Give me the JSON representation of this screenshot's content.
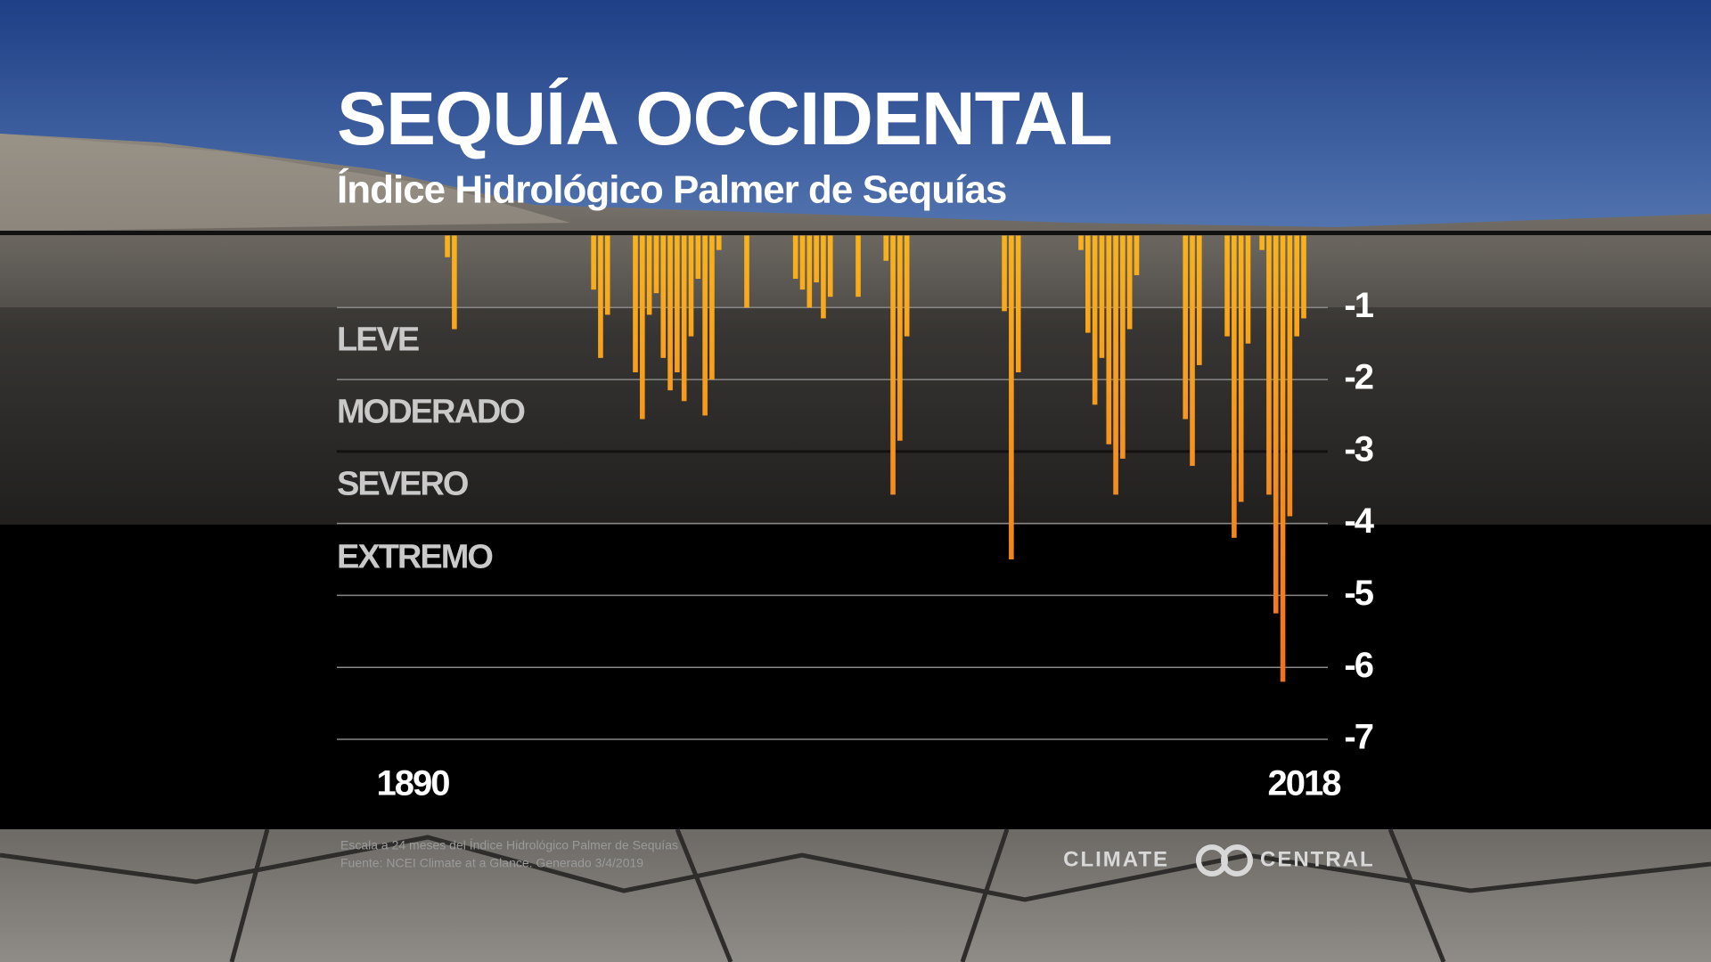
{
  "chart_data": {
    "type": "bar",
    "title": "SEQUÍA OCCIDENTAL",
    "subtitle": "Índice Hidrológico Palmer de Sequías",
    "band_labels": [
      "LEVE",
      "MODERADO",
      "SEVERO",
      "EXTREMO"
    ],
    "x": [
      1895,
      1896,
      1916,
      1917,
      1918,
      1922,
      1923,
      1924,
      1925,
      1926,
      1927,
      1928,
      1929,
      1930,
      1931,
      1932,
      1933,
      1934,
      1938,
      1945,
      1946,
      1947,
      1948,
      1949,
      1950,
      1954,
      1958,
      1959,
      1960,
      1961,
      1975,
      1976,
      1977,
      1986,
      1987,
      1988,
      1989,
      1990,
      1991,
      1992,
      1993,
      1994,
      2001,
      2002,
      2003,
      2007,
      2008,
      2009,
      2010,
      2012,
      2013,
      2014,
      2015,
      2016,
      2017,
      2018
    ],
    "values": [
      -0.3,
      -1.3,
      -0.75,
      -1.7,
      -1.1,
      -1.9,
      -2.55,
      -1.1,
      -0.8,
      -1.7,
      -2.15,
      -1.9,
      -2.3,
      -1.4,
      -0.6,
      -2.5,
      -2.0,
      -0.2,
      -1.0,
      -0.6,
      -0.75,
      -1.0,
      -0.65,
      -1.15,
      -0.85,
      -0.85,
      -0.35,
      -3.6,
      -2.85,
      -1.4,
      -1.05,
      -4.5,
      -1.9,
      -0.2,
      -1.35,
      -2.35,
      -1.7,
      -2.9,
      -3.6,
      -3.1,
      -1.3,
      -0.55,
      -2.55,
      -3.2,
      -1.8,
      -1.4,
      -4.2,
      -3.7,
      -1.5,
      -0.2,
      -3.6,
      -5.25,
      -6.2,
      -3.9,
      -1.4,
      -1.15
    ],
    "color": "#f5a21c",
    "xlim": [
      1890,
      2018
    ],
    "xticks": [
      1890,
      2018
    ],
    "ylim": [
      0,
      -7
    ],
    "yticks": [
      -1,
      -2,
      -3,
      -4,
      -5,
      -6,
      -7
    ],
    "grid": true,
    "notes": [
      "Escala a 24 meses del Índice Hidrológico Palmer de Sequías",
      "Fuente: NCEI Climate at a Glance. Generado 3/4/2019"
    ],
    "logo": [
      "CLIMATE",
      "CENTRAL"
    ]
  }
}
